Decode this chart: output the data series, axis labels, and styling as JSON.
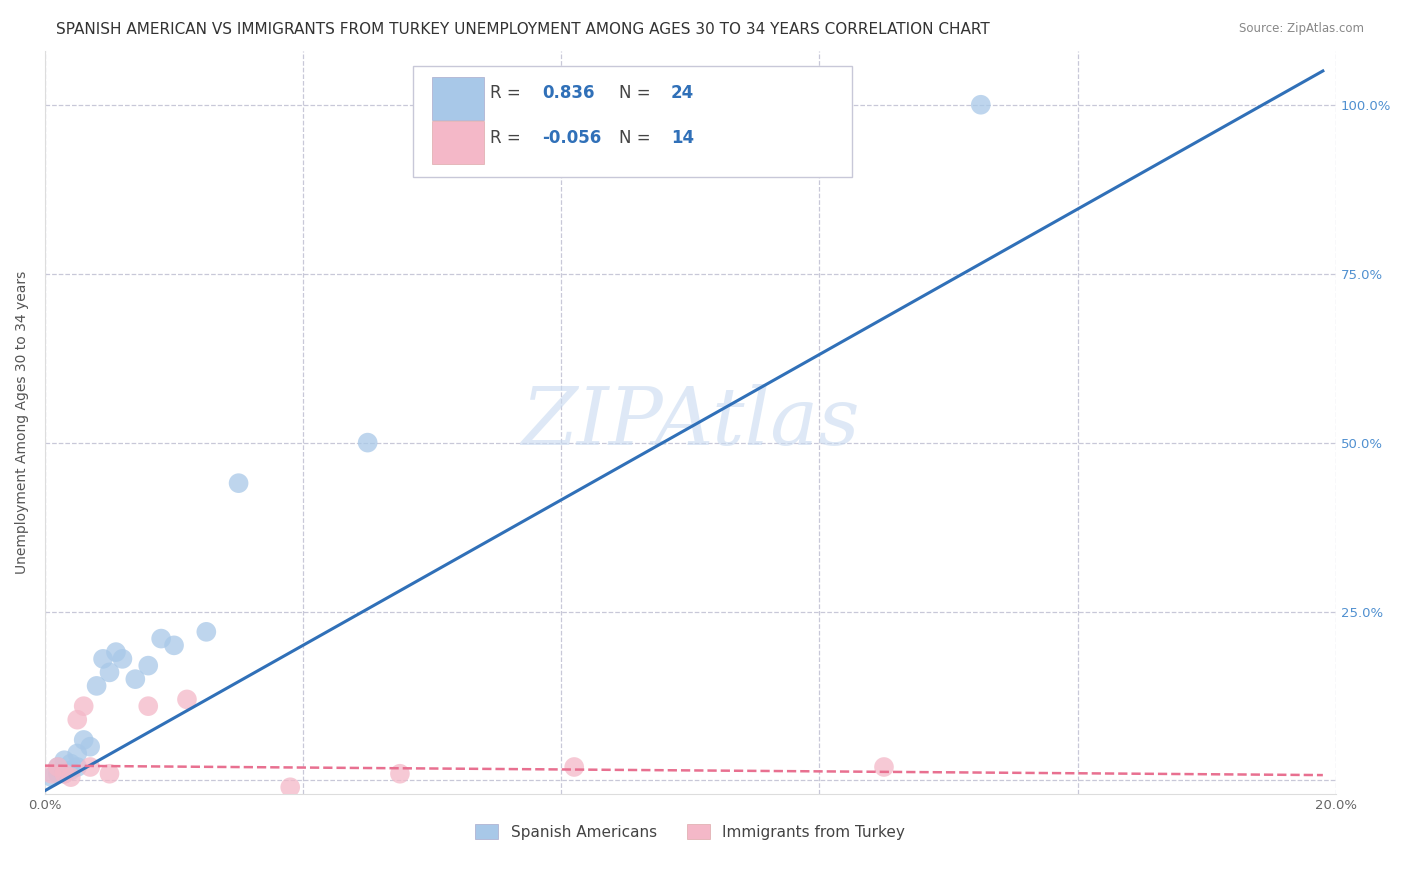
{
  "title": "SPANISH AMERICAN VS IMMIGRANTS FROM TURKEY UNEMPLOYMENT AMONG AGES 30 TO 34 YEARS CORRELATION CHART",
  "source": "Source: ZipAtlas.com",
  "ylabel_left": "Unemployment Among Ages 30 to 34 years",
  "xlim": [
    0.0,
    0.2
  ],
  "ylim": [
    -0.02,
    1.08
  ],
  "blue_r": 0.836,
  "blue_n": 24,
  "pink_r": -0.056,
  "pink_n": 14,
  "blue_color": "#a8c8e8",
  "pink_color": "#f4b8c8",
  "blue_line_color": "#3070b8",
  "pink_line_color": "#e87090",
  "watermark": "ZIPAtlas",
  "legend_label_blue": "Spanish Americans",
  "legend_label_pink": "Immigrants from Turkey",
  "blue_scatter_x": [
    0.001,
    0.002,
    0.002,
    0.003,
    0.003,
    0.004,
    0.004,
    0.005,
    0.005,
    0.006,
    0.007,
    0.008,
    0.009,
    0.01,
    0.011,
    0.012,
    0.014,
    0.016,
    0.018,
    0.02,
    0.025,
    0.03,
    0.05,
    0.145
  ],
  "blue_scatter_y": [
    0.005,
    0.01,
    0.02,
    0.01,
    0.03,
    0.015,
    0.025,
    0.02,
    0.04,
    0.06,
    0.05,
    0.14,
    0.18,
    0.16,
    0.19,
    0.18,
    0.15,
    0.17,
    0.21,
    0.2,
    0.22,
    0.44,
    0.5,
    1.0
  ],
  "pink_scatter_x": [
    0.001,
    0.002,
    0.003,
    0.004,
    0.005,
    0.006,
    0.007,
    0.01,
    0.016,
    0.022,
    0.038,
    0.055,
    0.082,
    0.13
  ],
  "pink_scatter_y": [
    0.01,
    0.02,
    0.01,
    0.005,
    0.09,
    0.11,
    0.02,
    0.01,
    0.11,
    0.12,
    -0.01,
    0.01,
    0.02,
    0.02
  ],
  "blue_line_x": [
    0.0,
    0.198
  ],
  "blue_line_y": [
    -0.015,
    1.05
  ],
  "pink_line_x": [
    0.0,
    0.198
  ],
  "pink_line_y": [
    0.022,
    0.008
  ],
  "background_color": "#ffffff",
  "grid_color": "#c8c8d8",
  "title_fontsize": 11,
  "axis_label_fontsize": 10,
  "tick_fontsize": 9.5,
  "legend_fontsize": 12
}
